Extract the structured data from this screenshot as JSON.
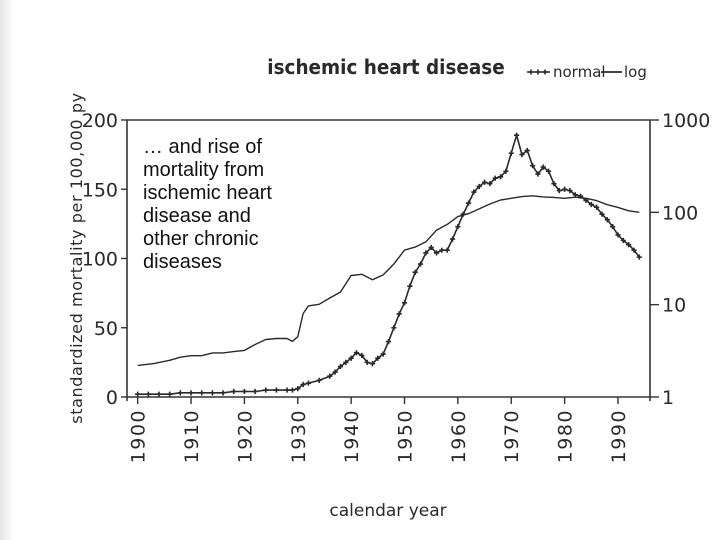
{
  "slide": {
    "overlay_text": "… and rise of\nmortality from\nischemic heart\ndisease and\nother chronic\ndiseases"
  },
  "chart_data": {
    "type": "line",
    "title": "ischemic heart disease",
    "xlabel": "calendar year",
    "ylabel": "standardized mortality per 100,000 py",
    "xlim": [
      1898,
      1996
    ],
    "ylim": [
      0,
      200
    ],
    "y2lim_log": [
      1,
      1000
    ],
    "x_ticks": [
      1900,
      1910,
      1920,
      1930,
      1940,
      1950,
      1960,
      1970,
      1980,
      1990
    ],
    "y_ticks": [
      0,
      50,
      100,
      150,
      200
    ],
    "y2_ticks": [
      1,
      10,
      100,
      1000
    ],
    "y2_scale": "log",
    "legend": {
      "position": "top-right",
      "items": [
        "normal",
        "log"
      ]
    },
    "grid": false,
    "colors": {
      "line": "#2a2a2a",
      "marker": "#2a2a2a",
      "axis": "#333333"
    },
    "series": [
      {
        "name": "normal",
        "axis": "left",
        "marker": "plus",
        "x": [
          1900,
          1902,
          1904,
          1906,
          1908,
          1910,
          1912,
          1914,
          1916,
          1918,
          1920,
          1922,
          1924,
          1926,
          1928,
          1929,
          1930,
          1931,
          1932,
          1934,
          1936,
          1937,
          1938,
          1939,
          1940,
          1941,
          1942,
          1943,
          1944,
          1945,
          1946,
          1947,
          1948,
          1949,
          1950,
          1951,
          1952,
          1953,
          1954,
          1955,
          1956,
          1957,
          1958,
          1959,
          1960,
          1961,
          1962,
          1963,
          1964,
          1965,
          1966,
          1967,
          1968,
          1969,
          1970,
          1971,
          1972,
          1973,
          1974,
          1975,
          1976,
          1977,
          1978,
          1979,
          1980,
          1981,
          1982,
          1983,
          1984,
          1985,
          1986,
          1987,
          1988,
          1989,
          1990,
          1991,
          1992,
          1993,
          1994
        ],
        "y": [
          2,
          2,
          2,
          2,
          3,
          3,
          3,
          3,
          3,
          4,
          4,
          4,
          5,
          5,
          5,
          5,
          6,
          9,
          10,
          12,
          15,
          18,
          22,
          25,
          28,
          32,
          30,
          25,
          24,
          28,
          31,
          40,
          50,
          60,
          68,
          80,
          90,
          96,
          104,
          108,
          104,
          106,
          106,
          114,
          123,
          132,
          140,
          148,
          152,
          155,
          154,
          158,
          159,
          163,
          176,
          189,
          175,
          178,
          167,
          161,
          166,
          163,
          154,
          149,
          150,
          149,
          146,
          145,
          142,
          139,
          137,
          132,
          128,
          123,
          117,
          113,
          110,
          106,
          101
        ]
      },
      {
        "name": "log",
        "axis": "right",
        "marker": "none",
        "x": [
          1900,
          1903,
          1906,
          1908,
          1910,
          1912,
          1914,
          1916,
          1918,
          1920,
          1922,
          1924,
          1926,
          1928,
          1929,
          1930,
          1931,
          1932,
          1934,
          1936,
          1938,
          1940,
          1942,
          1944,
          1946,
          1948,
          1950,
          1952,
          1954,
          1956,
          1958,
          1960,
          1962,
          1964,
          1966,
          1968,
          1970,
          1972,
          1974,
          1976,
          1978,
          1980,
          1982,
          1984,
          1986,
          1988,
          1990,
          1992,
          1994
        ],
        "y": [
          2.2,
          2.3,
          2.5,
          2.7,
          2.8,
          2.8,
          3.0,
          3.0,
          3.1,
          3.2,
          3.7,
          4.2,
          4.3,
          4.3,
          4.0,
          4.5,
          8.0,
          9.7,
          10.1,
          11.8,
          13.7,
          20.7,
          21.3,
          18.6,
          21.0,
          27.5,
          39.0,
          42.0,
          48.0,
          64.0,
          74.0,
          90.0,
          97.0,
          109.0,
          123.0,
          136.0,
          142.0,
          148.0,
          151.0,
          147.0,
          145.0,
          142.0,
          146.0,
          142.0,
          134.0,
          121.0,
          113.0,
          104.0,
          100.0
        ]
      }
    ]
  }
}
